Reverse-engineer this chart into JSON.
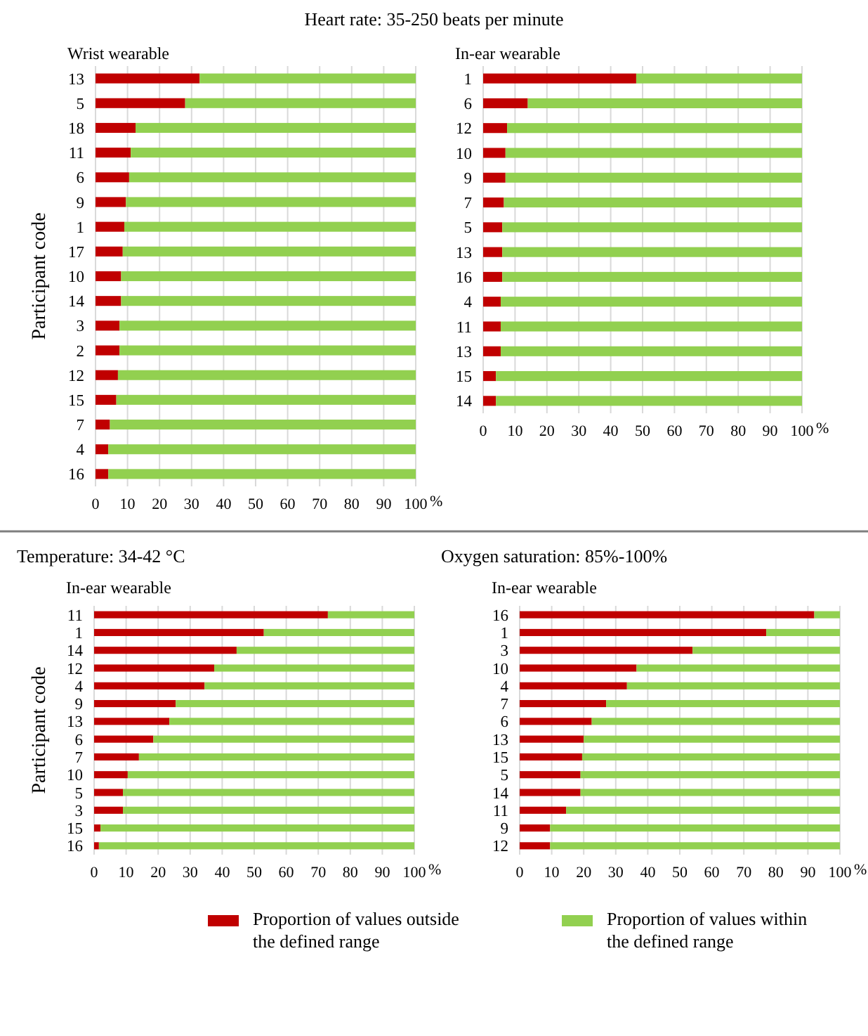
{
  "chart_data": [
    {
      "type": "bar",
      "orientation": "horizontal",
      "stacked": true,
      "title": "Heart rate: 35-250 beats per minute",
      "subtitle": "Wrist wearable",
      "ylabel": "Participant code",
      "categories": [
        "13",
        "5",
        "18",
        "11",
        "6",
        "9",
        "1",
        "17",
        "10",
        "14",
        "3",
        "2",
        "12",
        "15",
        "7",
        "4",
        "16"
      ],
      "series": [
        {
          "color": "#c00000",
          "values": [
            32.5,
            28,
            12.5,
            11,
            10.5,
            9.5,
            9,
            8.5,
            8,
            8,
            7.5,
            7.5,
            7,
            6.5,
            4.5,
            4,
            4
          ]
        },
        {
          "color": "#92d050",
          "values": [
            67.5,
            72,
            87.5,
            89,
            89.5,
            90.5,
            91,
            91.5,
            92,
            92,
            92.5,
            92.5,
            93,
            93.5,
            95.5,
            96,
            96
          ]
        }
      ],
      "xlim": [
        0,
        100
      ],
      "xticks": [
        0,
        10,
        20,
        30,
        40,
        50,
        60,
        70,
        80,
        90,
        100
      ],
      "xlabel": "%",
      "grid": "x",
      "legend": false
    },
    {
      "type": "bar",
      "orientation": "horizontal",
      "stacked": true,
      "subtitle": "In-ear wearable",
      "categories": [
        "1",
        "6",
        "12",
        "10",
        "9",
        "7",
        "5",
        "13",
        "16",
        "4",
        "11",
        "13",
        "15",
        "14"
      ],
      "series": [
        {
          "color": "#c00000",
          "values": [
            48,
            14,
            7.5,
            7,
            7,
            6.5,
            6,
            6,
            6,
            5.5,
            5.5,
            5.5,
            4,
            4
          ]
        },
        {
          "color": "#92d050",
          "values": [
            52,
            86,
            92.5,
            93,
            93,
            93.5,
            94,
            94,
            94,
            94.5,
            94.5,
            94.5,
            96,
            96
          ]
        }
      ],
      "xlim": [
        0,
        100
      ],
      "xticks": [
        0,
        10,
        20,
        30,
        40,
        50,
        60,
        70,
        80,
        90,
        100
      ],
      "xlabel": "%",
      "grid": "x",
      "legend": false
    },
    {
      "type": "bar",
      "orientation": "horizontal",
      "stacked": true,
      "title": "Temperature: 34-42 °C",
      "subtitle": "In-ear wearable",
      "ylabel": "Participant code",
      "categories": [
        "11",
        "1",
        "14",
        "12",
        "4",
        "9",
        "13",
        "6",
        "7",
        "10",
        "5",
        "3",
        "15",
        "16"
      ],
      "series": [
        {
          "color": "#c00000",
          "values": [
            73,
            53,
            44.5,
            37.5,
            34.5,
            25.5,
            23.5,
            18.5,
            14,
            10.5,
            9,
            9,
            2,
            1.5
          ]
        },
        {
          "color": "#92d050",
          "values": [
            27,
            47,
            55.5,
            62.5,
            65.5,
            74.5,
            76.5,
            81.5,
            86,
            89.5,
            91,
            91,
            98,
            98.5
          ]
        }
      ],
      "xlim": [
        0,
        100
      ],
      "xticks": [
        0,
        10,
        20,
        30,
        40,
        50,
        60,
        70,
        80,
        90,
        100
      ],
      "xlabel": "%",
      "grid": "x",
      "legend": false
    },
    {
      "type": "bar",
      "orientation": "horizontal",
      "stacked": true,
      "title": "Oxygen saturation: 85%-100%",
      "subtitle": "In-ear wearable",
      "categories": [
        "16",
        "1",
        "3",
        "10",
        "4",
        "7",
        "6",
        "13",
        "15",
        "5",
        "14",
        "11",
        "9",
        "12"
      ],
      "series": [
        {
          "name": "Proportion of values outside the defined range",
          "color": "#c00000",
          "values": [
            92,
            77,
            54,
            36.5,
            33.5,
            27,
            22.5,
            20,
            19.5,
            19,
            19,
            14.5,
            9.5,
            9.5
          ]
        },
        {
          "name": "Proportion of values within the defined range",
          "color": "#92d050",
          "values": [
            8,
            23,
            46,
            63.5,
            66.5,
            73,
            77.5,
            80,
            80.5,
            81,
            81,
            85.5,
            90.5,
            90.5
          ]
        }
      ],
      "xlim": [
        0,
        100
      ],
      "xticks": [
        0,
        10,
        20,
        30,
        40,
        50,
        60,
        70,
        80,
        90,
        100
      ],
      "xlabel": "%",
      "grid": "x",
      "legend": "bottom"
    }
  ]
}
